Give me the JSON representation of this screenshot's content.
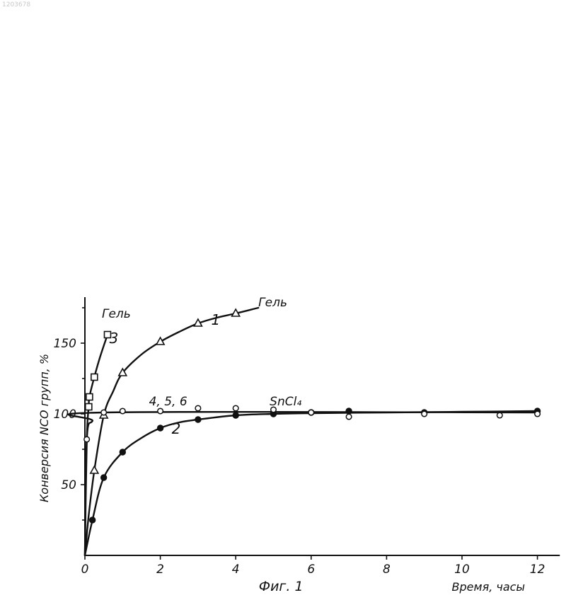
{
  "image_id": "1203678",
  "chart_data": {
    "type": "scatter",
    "xlabel": "Время, часы",
    "ylabel": "Конверсия NCO групп, %",
    "caption": "Фиг. 1",
    "xlim": [
      0,
      12.5
    ],
    "ylim": [
      0,
      180
    ],
    "xticks": [
      0,
      2,
      4,
      6,
      8,
      10,
      12
    ],
    "yticks": [
      50,
      100,
      150
    ],
    "grid": false,
    "series": [
      {
        "name": "1",
        "marker": "triangle",
        "points": [
          [
            0.25,
            60
          ],
          [
            0.5,
            99
          ],
          [
            1,
            129
          ],
          [
            2,
            151
          ],
          [
            3,
            164
          ],
          [
            4,
            171
          ]
        ],
        "curve": [
          [
            0,
            0
          ],
          [
            0.1,
            28
          ],
          [
            0.25,
            60
          ],
          [
            0.5,
            99
          ],
          [
            0.75,
            116
          ],
          [
            1,
            129
          ],
          [
            1.5,
            142
          ],
          [
            2,
            151
          ],
          [
            2.5,
            158
          ],
          [
            3,
            164
          ],
          [
            3.5,
            168
          ],
          [
            4,
            171
          ],
          [
            4.6,
            175
          ]
        ]
      },
      {
        "name": "2",
        "marker": "filled-circle",
        "points": [
          [
            0.2,
            25
          ],
          [
            0.5,
            55
          ],
          [
            1,
            73
          ],
          [
            2,
            90
          ],
          [
            3,
            96
          ],
          [
            4,
            99
          ],
          [
            5,
            100
          ],
          [
            6,
            101
          ],
          [
            7,
            102
          ],
          [
            9,
            101
          ],
          [
            12,
            102
          ]
        ],
        "curve": [
          [
            0,
            0
          ],
          [
            0.2,
            25
          ],
          [
            0.5,
            55
          ],
          [
            1,
            73
          ],
          [
            1.5,
            83
          ],
          [
            2,
            90
          ],
          [
            2.5,
            94
          ],
          [
            3,
            96
          ],
          [
            4,
            99
          ],
          [
            5,
            100
          ],
          [
            6,
            100.5
          ],
          [
            8,
            101
          ],
          [
            10,
            101.5
          ],
          [
            12,
            102
          ]
        ]
      },
      {
        "name": "3",
        "marker": "square",
        "points": [
          [
            0.1,
            105
          ],
          [
            0.12,
            112
          ],
          [
            0.25,
            126
          ],
          [
            0.6,
            156
          ]
        ],
        "curve": [
          [
            0,
            0
          ],
          [
            0.05,
            82
          ],
          [
            0.1,
            105
          ],
          [
            0.12,
            112
          ],
          [
            0.25,
            126
          ],
          [
            0.4,
            140
          ],
          [
            0.6,
            156
          ]
        ]
      },
      {
        "name": "4, 5, 6",
        "marker": "open-circle",
        "points": [
          [
            0.05,
            82
          ],
          [
            0.5,
            101
          ],
          [
            1,
            102
          ],
          [
            2,
            102
          ],
          [
            3,
            104
          ],
          [
            4,
            104
          ],
          [
            5,
            103
          ],
          [
            6,
            101
          ],
          [
            7,
            98
          ],
          [
            9,
            100
          ],
          [
            11,
            99
          ],
          [
            12,
            100
          ]
        ],
        "curve": [
          [
            0,
            0
          ],
          [
            0.05,
            82
          ],
          [
            0.2,
            95
          ],
          [
            0.5,
            101
          ],
          [
            12,
            101
          ]
        ]
      }
    ],
    "annotations": [
      {
        "text": "Гель",
        "x": 4.6,
        "y": 176
      },
      {
        "text": "Гель",
        "x": 0.45,
        "y": 168
      },
      {
        "text": "1",
        "x": 3.35,
        "y": 163
      },
      {
        "text": "3",
        "x": 0.65,
        "y": 150
      },
      {
        "text": "4, 5, 6",
        "x": 1.7,
        "y": 106
      },
      {
        "text": "SnCl₄",
        "x": 4.9,
        "y": 106
      },
      {
        "text": "2",
        "x": 2.3,
        "y": 86
      }
    ],
    "legend": "none"
  },
  "colors": {
    "ink": "#111111",
    "paper": "#ffffff"
  }
}
